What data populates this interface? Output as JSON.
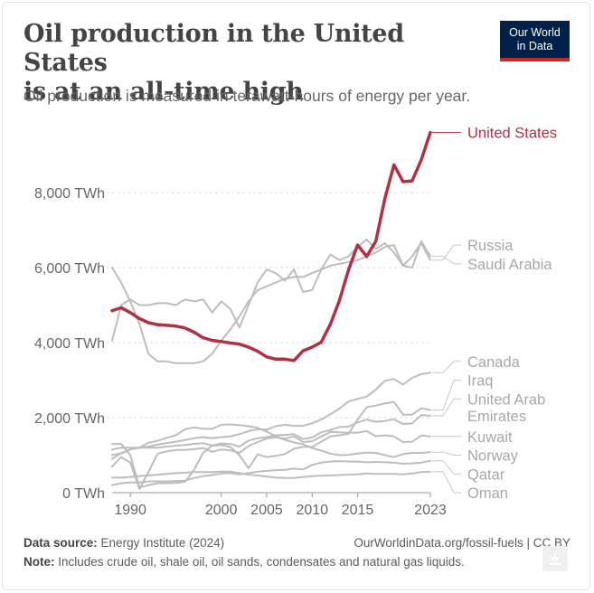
{
  "header": {
    "title_line1": "Oil production in the United States",
    "title_line2": "is at an all-time high",
    "subtitle": "Oil production is measured in terawatt-hours of energy per year.",
    "logo_line1": "Our World",
    "logo_line2": "in Data"
  },
  "footer": {
    "source_label": "Data source:",
    "source_text": "Energy Institute (2024)",
    "url": "OurWorldinData.org/fossil-fuels | CC BY",
    "note_label": "Note:",
    "note_text": "Includes crude oil, shale oil, oil sands, condensates and natural gas liquids."
  },
  "colors": {
    "highlight": "#b13046",
    "other": "#bdbdbd",
    "grid": "#dddddd",
    "tick_text": "#666666"
  },
  "icons": {
    "download": "download-icon"
  },
  "chart_data": {
    "type": "line",
    "title": "Oil production in the United States is at an all-time high",
    "subtitle": "Oil production is measured in terawatt-hours of energy per year.",
    "xlabel": "",
    "ylabel": "",
    "xlim": [
      1988,
      2023
    ],
    "ylim": [
      0,
      10000
    ],
    "x_ticks": [
      1990,
      2000,
      2005,
      2010,
      2015,
      2023
    ],
    "y_ticks": [
      0,
      2000,
      4000,
      6000,
      8000
    ],
    "y_tick_labels": [
      "0 TWh",
      "2,000 TWh",
      "4,000 TWh",
      "6,000 TWh",
      "8,000 TWh"
    ],
    "legend": "labels at line ends (right)",
    "grid": "horizontal dotted",
    "x": [
      1988,
      1989,
      1990,
      1991,
      1992,
      1993,
      1994,
      1995,
      1996,
      1997,
      1998,
      1999,
      2000,
      2001,
      2002,
      2003,
      2004,
      2005,
      2006,
      2007,
      2008,
      2009,
      2010,
      2011,
      2012,
      2013,
      2014,
      2015,
      2016,
      2017,
      2018,
      2019,
      2020,
      2021,
      2022,
      2023
    ],
    "series": [
      {
        "name": "United States",
        "highlight": true,
        "values": [
          4850,
          4930,
          4800,
          4640,
          4530,
          4480,
          4460,
          4440,
          4390,
          4280,
          4130,
          4060,
          4030,
          3990,
          3960,
          3880,
          3770,
          3620,
          3560,
          3560,
          3520,
          3780,
          3880,
          4010,
          4490,
          5120,
          5940,
          6600,
          6300,
          6700,
          7840,
          8740,
          8290,
          8310,
          8870,
          9600
        ]
      },
      {
        "name": "Russia",
        "values": [
          6000,
          5600,
          5100,
          4500,
          3700,
          3500,
          3500,
          3450,
          3450,
          3450,
          3500,
          3700,
          4050,
          4350,
          4700,
          5100,
          5400,
          5500,
          5600,
          5700,
          5750,
          5750,
          5850,
          5950,
          6050,
          6100,
          6150,
          6200,
          6300,
          6400,
          6550,
          6600,
          6050,
          6300,
          6650,
          6200
        ]
      },
      {
        "name": "Saudi Arabia",
        "values": [
          4050,
          5000,
          5150,
          5000,
          5000,
          5050,
          5050,
          5000,
          5150,
          5100,
          5150,
          4800,
          5100,
          4900,
          4400,
          5000,
          5600,
          5950,
          5850,
          5650,
          5950,
          5350,
          5400,
          5950,
          6350,
          6200,
          6300,
          6550,
          6750,
          6500,
          6650,
          6400,
          6050,
          6000,
          6700,
          6300
        ]
      },
      {
        "name": "Canada",
        "values": [
          1150,
          1200,
          1200,
          1200,
          1230,
          1280,
          1320,
          1360,
          1400,
          1450,
          1480,
          1450,
          1480,
          1500,
          1560,
          1640,
          1690,
          1680,
          1770,
          1810,
          1780,
          1780,
          1850,
          1950,
          2090,
          2240,
          2430,
          2500,
          2560,
          2750,
          2980,
          3030,
          2880,
          3060,
          3160,
          3200
        ]
      },
      {
        "name": "Iraq",
        "values": [
          1300,
          1300,
          1000,
          140,
          200,
          250,
          250,
          260,
          290,
          600,
          1060,
          1250,
          1270,
          1220,
          1000,
          650,
          1020,
          950,
          980,
          1030,
          1170,
          1220,
          1220,
          1360,
          1500,
          1530,
          1570,
          1950,
          2280,
          2320,
          2380,
          2420,
          2080,
          2080,
          2250,
          2200
        ]
      },
      {
        "name": "United Arab Emirates",
        "values": [
          900,
          1050,
          1150,
          1200,
          1200,
          1200,
          1230,
          1250,
          1270,
          1300,
          1320,
          1260,
          1310,
          1300,
          1230,
          1390,
          1450,
          1480,
          1530,
          1540,
          1560,
          1430,
          1470,
          1610,
          1670,
          1750,
          1760,
          1870,
          1950,
          1890,
          1910,
          1960,
          1830,
          1850,
          2070,
          2050
        ]
      },
      {
        "name": "Kuwait",
        "values": [
          700,
          950,
          800,
          100,
          550,
          1040,
          1100,
          1140,
          1140,
          1160,
          1190,
          1090,
          1150,
          1130,
          1060,
          1240,
          1350,
          1440,
          1480,
          1440,
          1500,
          1350,
          1370,
          1500,
          1620,
          1610,
          1600,
          1600,
          1640,
          1500,
          1530,
          1500,
          1350,
          1360,
          1520,
          1500
        ]
      },
      {
        "name": "Norway",
        "values": [
          1000,
          1050,
          1150,
          1200,
          1330,
          1380,
          1460,
          1530,
          1690,
          1740,
          1700,
          1700,
          1810,
          1820,
          1800,
          1770,
          1730,
          1630,
          1500,
          1410,
          1340,
          1290,
          1190,
          1120,
          1040,
          1000,
          1010,
          1040,
          1070,
          1060,
          1000,
          950,
          1030,
          1060,
          1060,
          1080
        ]
      },
      {
        "name": "Qatar",
        "values": [
          200,
          250,
          270,
          270,
          300,
          300,
          300,
          310,
          320,
          390,
          440,
          470,
          510,
          520,
          490,
          520,
          560,
          580,
          600,
          610,
          640,
          620,
          740,
          800,
          830,
          840,
          830,
          830,
          810,
          820,
          810,
          800,
          770,
          780,
          800,
          850
        ]
      },
      {
        "name": "Oman",
        "values": [
          400,
          400,
          420,
          440,
          460,
          480,
          500,
          520,
          530,
          550,
          550,
          550,
          560,
          560,
          520,
          480,
          460,
          430,
          400,
          390,
          390,
          420,
          440,
          450,
          460,
          470,
          480,
          490,
          510,
          500,
          500,
          500,
          490,
          510,
          550,
          560
        ]
      }
    ],
    "end_labels": [
      {
        "name": "United States",
        "value": 9600,
        "highlight": true
      },
      {
        "name": "Russia",
        "value": 6600
      },
      {
        "name": "Saudi Arabia",
        "value": 6100
      },
      {
        "name": "Canada",
        "value": 3500
      },
      {
        "name": "Iraq",
        "value": 3000
      },
      {
        "name": "United Arab",
        "value": 2500
      },
      {
        "name": "Emirates",
        "value": 2050
      },
      {
        "name": "Kuwait",
        "value": 1500
      },
      {
        "name": "Norway",
        "value": 1000
      },
      {
        "name": "Qatar",
        "value": 500
      },
      {
        "name": "Oman",
        "value": 0
      }
    ]
  }
}
